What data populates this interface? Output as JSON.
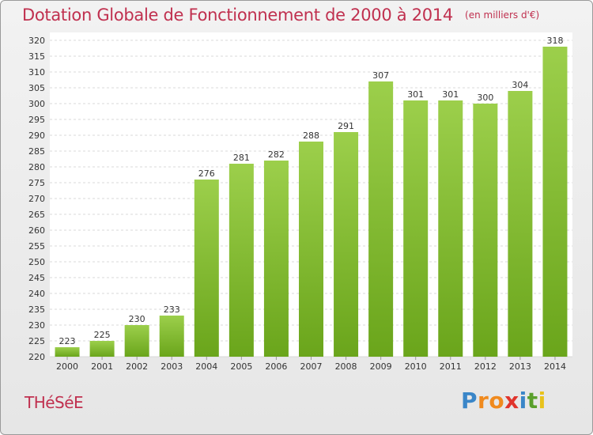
{
  "chart_data": {
    "type": "bar",
    "title": "Dotation Globale de Fonctionnement de 2000 à 2014",
    "subtitle": "(en milliers d'€)",
    "categories": [
      "2000",
      "2001",
      "2002",
      "2003",
      "2004",
      "2005",
      "2006",
      "2007",
      "2008",
      "2009",
      "2010",
      "2011",
      "2012",
      "2013",
      "2014"
    ],
    "values": [
      223,
      225,
      230,
      233,
      276,
      281,
      282,
      288,
      291,
      307,
      301,
      301,
      300,
      304,
      318
    ],
    "ylim": [
      220,
      320
    ],
    "ytick_step": 5,
    "grid": true,
    "bar_color_top": "#9ccf4b",
    "bar_color_bottom": "#6aa51b"
  },
  "footer": {
    "commune": "THéSéE",
    "logo_letters": [
      "P",
      "r",
      "o",
      "x",
      "i",
      "t",
      "i"
    ],
    "logo_colors": [
      "#3a86c8",
      "#f08a1e",
      "#f08a1e",
      "#e0342c",
      "#3a86c8",
      "#5aa02c",
      "#e8c21c"
    ]
  }
}
